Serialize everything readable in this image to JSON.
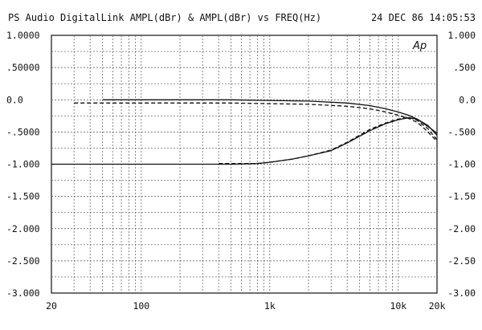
{
  "header": {
    "title": "PS Audio DigitalLink AMPL(dBr) & AMPL(dBr) vs FREQ(Hz)",
    "timestamp": "24 DEC 86 14:05:53",
    "logo": "Ap"
  },
  "chart_data": {
    "type": "line",
    "title": "PS Audio DigitalLink AMPL(dBr) & AMPL(dBr) vs FREQ(Hz)",
    "xlabel": "FREQ(Hz)",
    "ylabel": "AMPL(dBr)",
    "x_scale": "log",
    "xlim": [
      20,
      20000
    ],
    "ylim": [
      -3.0,
      1.0
    ],
    "grid": true,
    "x_tick_labels": [
      {
        "value": 20,
        "label": "20"
      },
      {
        "value": 100,
        "label": "100"
      },
      {
        "value": 1000,
        "label": "1k"
      },
      {
        "value": 10000,
        "label": "10k"
      },
      {
        "value": 20000,
        "label": "20k"
      }
    ],
    "y_tick_labels_left": [
      {
        "value": 1.0,
        "label": "1.0000"
      },
      {
        "value": 0.5,
        "label": ".50000"
      },
      {
        "value": 0.0,
        "label": "0.0"
      },
      {
        "value": -0.5,
        "label": "-.5000"
      },
      {
        "value": -1.0,
        "label": "-1.000"
      },
      {
        "value": -1.5,
        "label": "-1.500"
      },
      {
        "value": -2.0,
        "label": "-2.000"
      },
      {
        "value": -2.5,
        "label": "-2.500"
      },
      {
        "value": -3.0,
        "label": "-3.000"
      }
    ],
    "y_tick_labels_right": [
      {
        "value": 1.0,
        "label": "1.000"
      },
      {
        "value": 0.5,
        "label": ".500"
      },
      {
        "value": 0.0,
        "label": "0.0"
      },
      {
        "value": -0.5,
        "label": "-.500"
      },
      {
        "value": -1.0,
        "label": "-1.00"
      },
      {
        "value": -1.5,
        "label": "-1.50"
      },
      {
        "value": -2.0,
        "label": "-2.00"
      },
      {
        "value": -2.5,
        "label": "-2.50"
      },
      {
        "value": -3.0,
        "label": "-3.00"
      }
    ],
    "series": [
      {
        "style": "solid",
        "x": [
          50,
          100,
          500,
          1000,
          2000,
          4000,
          6000,
          8000,
          10000,
          12000,
          14000,
          16000,
          18000,
          20000
        ],
        "y": [
          0.0,
          0.0,
          0.0,
          -0.01,
          -0.02,
          -0.05,
          -0.09,
          -0.14,
          -0.19,
          -0.24,
          -0.3,
          -0.38,
          -0.45,
          -0.52
        ]
      },
      {
        "style": "dashed",
        "x": [
          30,
          100,
          500,
          1000,
          2000,
          4000,
          6000,
          8000,
          10000,
          12000,
          14000,
          16000,
          18000,
          20000
        ],
        "y": [
          -0.05,
          -0.05,
          -0.05,
          -0.06,
          -0.07,
          -0.1,
          -0.14,
          -0.19,
          -0.24,
          -0.29,
          -0.35,
          -0.45,
          -0.55,
          -0.65
        ]
      },
      {
        "style": "solid",
        "x": [
          20,
          100,
          500,
          800,
          1000,
          1500,
          2000,
          3000,
          4000,
          6000,
          8000,
          10000,
          12000,
          14000,
          17000,
          20000
        ],
        "y": [
          -1.0,
          -1.0,
          -1.0,
          -0.99,
          -0.97,
          -0.92,
          -0.87,
          -0.79,
          -0.67,
          -0.48,
          -0.37,
          -0.31,
          -0.28,
          -0.3,
          -0.4,
          -0.55
        ]
      },
      {
        "style": "dashed",
        "x": [
          400,
          800,
          1000,
          1500,
          2000,
          3000,
          4000,
          6000,
          8000,
          10000,
          12000,
          14000,
          17000,
          20000
        ],
        "y": [
          -0.99,
          -0.99,
          -0.97,
          -0.92,
          -0.87,
          -0.78,
          -0.66,
          -0.46,
          -0.36,
          -0.3,
          -0.27,
          -0.32,
          -0.45,
          -0.62
        ]
      }
    ]
  }
}
